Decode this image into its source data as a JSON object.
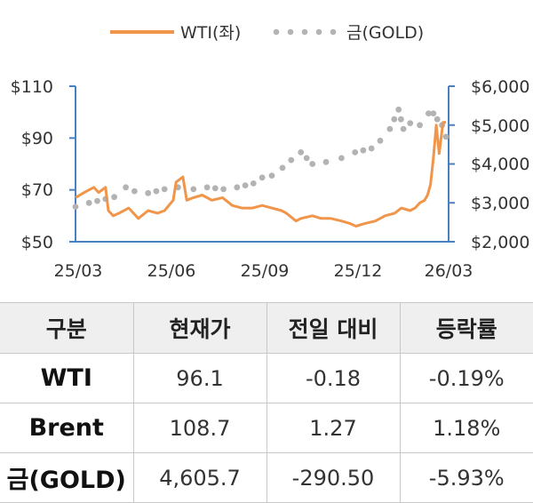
{
  "chart_data": {
    "type": "line",
    "legend_position": "top-center",
    "grid": false,
    "x_ticks": [
      "25/03",
      "25/06",
      "25/09",
      "25/12",
      "26/03"
    ],
    "y_left": {
      "ticks": [
        "$110",
        "$90",
        "$70",
        "$50"
      ],
      "range": [
        50,
        110
      ]
    },
    "y_right": {
      "ticks": [
        "$6,000",
        "$5,000",
        "$4,000",
        "$3,000",
        "$2,000"
      ],
      "range": [
        2000,
        6000
      ]
    },
    "series": [
      {
        "name": "WTI(좌)",
        "axis": "left",
        "style": "solid",
        "color": "#f0954a",
        "x": [
          "25/03/01",
          "25/03/10",
          "25/03/20",
          "25/03/25",
          "25/04/01",
          "25/04/04",
          "25/04/09",
          "25/04/15",
          "25/04/25",
          "25/05/05",
          "25/05/15",
          "25/05/25",
          "25/06/01",
          "25/06/10",
          "25/06/13",
          "25/06/20",
          "25/06/24",
          "25/07/01",
          "25/07/10",
          "25/07/20",
          "25/07/31",
          "25/08/10",
          "25/08/20",
          "25/08/31",
          "25/09/10",
          "25/09/20",
          "25/09/30",
          "25/10/05",
          "25/10/15",
          "25/10/20",
          "25/11/01",
          "25/11/10",
          "25/11/20",
          "25/12/01",
          "25/12/10",
          "25/12/16",
          "25/12/25",
          "26/01/05",
          "26/01/15",
          "26/01/25",
          "26/02/01",
          "26/02/10",
          "26/02/15",
          "26/02/20",
          "26/02/25",
          "26/02/28",
          "26/03/03",
          "26/03/06",
          "26/03/09",
          "26/03/12",
          "26/03/16",
          "26/03/19"
        ],
        "values": [
          67,
          69,
          71,
          69,
          71,
          62,
          60,
          61,
          63,
          59,
          62,
          61,
          62,
          66,
          73,
          75,
          66,
          67,
          68,
          66,
          67,
          64,
          63,
          63,
          64,
          63,
          62,
          61,
          58,
          59,
          60,
          59,
          59,
          58,
          57,
          56,
          57,
          58,
          60,
          61,
          63,
          62,
          63,
          65,
          66,
          68,
          72,
          82,
          95,
          84,
          96,
          96.1
        ]
      },
      {
        "name": "금(GOLD)",
        "axis": "right",
        "style": "dotted",
        "color": "#b3b3b3",
        "x": [
          "25/03/01",
          "25/03/15",
          "25/04/01",
          "25/04/10",
          "25/04/22",
          "25/05/01",
          "25/05/15",
          "25/06/01",
          "25/06/15",
          "25/07/01",
          "25/07/15",
          "25/08/01",
          "25/08/15",
          "25/09/01",
          "25/09/10",
          "25/09/20",
          "25/10/01",
          "25/10/10",
          "25/10/20",
          "25/11/01",
          "25/11/15",
          "25/12/01",
          "25/12/15",
          "26/01/01",
          "26/01/10",
          "26/01/20",
          "26/01/29",
          "26/02/03",
          "26/02/10",
          "26/02/20",
          "26/03/01",
          "26/03/06",
          "26/03/10",
          "26/03/15",
          "26/03/19"
        ],
        "values": [
          2900,
          3000,
          3100,
          3150,
          3400,
          3300,
          3250,
          3350,
          3400,
          3350,
          3400,
          3350,
          3400,
          3500,
          3650,
          3700,
          3900,
          4100,
          4300,
          4000,
          4050,
          4150,
          4300,
          4400,
          4600,
          4900,
          5400,
          4900,
          5050,
          5000,
          5300,
          5300,
          5150,
          5000,
          4700
        ]
      }
    ]
  },
  "table": {
    "headers": [
      "구분",
      "현재가",
      "전일 대비",
      "등락률"
    ],
    "rows": [
      {
        "name": "WTI",
        "price": "96.1",
        "change": "-0.18",
        "pct": "-0.19%"
      },
      {
        "name": "Brent",
        "price": "108.7",
        "change": "1.27",
        "pct": "1.18%"
      },
      {
        "name": "금(GOLD)",
        "price": "4,605.7",
        "change": "-290.50",
        "pct": "-5.93%"
      }
    ]
  }
}
